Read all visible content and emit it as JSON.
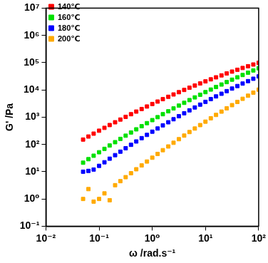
{
  "chart_data": {
    "type": "scatter",
    "x_label": "ω /rad.s⁻¹",
    "y_label": "G' /Pa",
    "log": true,
    "grid": false,
    "legend": "upper left",
    "marker": "square",
    "xlim": [
      0.01,
      100
    ],
    "ylim": [
      0.1,
      10000000
    ],
    "xticks": [
      {
        "value": 0.01,
        "label": "10⁻²"
      },
      {
        "value": 0.1,
        "label": "10⁻¹"
      },
      {
        "value": 1,
        "label": "10⁰"
      },
      {
        "value": 10,
        "label": "10¹"
      },
      {
        "value": 100,
        "label": "10²"
      }
    ],
    "yticks": [
      {
        "value": 0.1,
        "label": "10⁻¹"
      },
      {
        "value": 1,
        "label": "10⁰"
      },
      {
        "value": 10,
        "label": "10¹"
      },
      {
        "value": 100,
        "label": "10²"
      },
      {
        "value": 1000,
        "label": "10³"
      },
      {
        "value": 10000,
        "label": "10⁴"
      },
      {
        "value": 100000,
        "label": "10⁵"
      },
      {
        "value": 1000000,
        "label": "10⁶"
      },
      {
        "value": 10000000,
        "label": "10⁷"
      }
    ],
    "x": [
      0.05,
      0.063,
      0.079,
      0.1,
      0.126,
      0.158,
      0.2,
      0.251,
      0.316,
      0.398,
      0.5,
      0.631,
      0.794,
      1,
      1.26,
      1.58,
      2,
      2.51,
      3.16,
      3.98,
      5,
      6.31,
      7.94,
      10,
      12.6,
      15.8,
      20,
      25.1,
      31.6,
      39.8,
      50,
      63.1,
      79.4,
      100
    ],
    "series": [
      {
        "name": "140℃",
        "color": "#ff0000",
        "values": [
          151,
          195,
          249,
          319,
          406,
          515,
          650,
          819,
          1028,
          1286,
          1603,
          1992,
          2466,
          3043,
          3741,
          4585,
          5598,
          6813,
          8260,
          9984,
          12023,
          14430,
          17258,
          20573,
          24434,
          28934,
          34119,
          40118,
          46989,
          54876,
          63826,
          74014,
          85507,
          98470
        ]
      },
      {
        "name": "160℃",
        "color": "#00e000",
        "values": [
          21.4,
          28.8,
          38.6,
          51.7,
          68.8,
          91.4,
          121,
          159.6,
          209.6,
          274.5,
          358.3,
          466,
          604,
          780,
          1003,
          1287,
          1644,
          2094,
          2657,
          3360,
          4235,
          5318,
          6656,
          8299,
          10313,
          12776,
          15765,
          19390,
          23759,
          29010,
          35300,
          42812,
          51739,
          62290
        ]
      },
      {
        "name": "180℃",
        "color": "#0000ff",
        "values": [
          10,
          10.7,
          12,
          16.4,
          22.2,
          30,
          40.5,
          54.3,
          72.6,
          96.8,
          128.5,
          169.9,
          223.9,
          293.9,
          384.4,
          501,
          650,
          841,
          1084,
          1393,
          1781,
          2271,
          2884,
          3649,
          4601,
          5779,
          7232,
          9016,
          11199,
          13868,
          17090,
          21004,
          25704,
          31354
        ]
      },
      {
        "name": "200℃",
        "color": "#ffaa00",
        "values": [
          1.0,
          2.3,
          0.8,
          1.0,
          1.6,
          0.9,
          3.2,
          4.5,
          6.3,
          8.8,
          12.3,
          17,
          23.6,
          32.6,
          44.9,
          61.7,
          84.3,
          115,
          156,
          211,
          285,
          383,
          513,
          686,
          912,
          1210,
          1600,
          2107,
          2766,
          3618,
          4718,
          6132,
          7940,
          10245
        ]
      }
    ]
  }
}
